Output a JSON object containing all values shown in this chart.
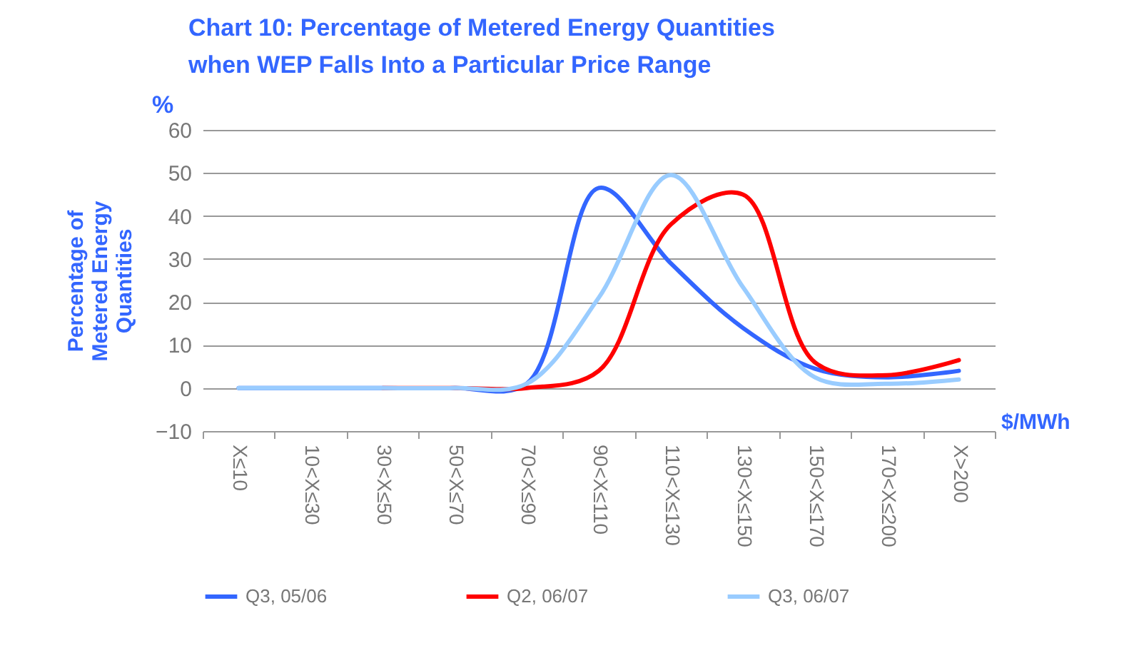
{
  "chart_data": {
    "type": "line",
    "title": "Chart 10: Percentage of Metered Energy Quantities when WEP Falls Into a Particular Price Range",
    "ylabel": "Percentage of Metered Energy Quantities",
    "xlabel": "$/MWh",
    "annotations": [
      "%"
    ],
    "categories": [
      "X≤10",
      "10<X≤30",
      "30<X≤50",
      "50<X≤70",
      "70<X≤90",
      "90<X≤110",
      "110<X≤130",
      "130<X≤150",
      "150<X≤170",
      "170<X≤200",
      "X>200"
    ],
    "series": [
      {
        "name": "Q3, 05/06",
        "color": "#3366ff",
        "values": [
          0,
          0,
          0,
          0,
          1,
          46.5,
          29,
          14,
          4.5,
          2.5,
          4
        ]
      },
      {
        "name": "Q2, 06/07",
        "color": "#ff0000",
        "values": [
          null,
          null,
          0,
          0,
          0,
          4,
          38,
          45,
          6,
          3,
          6.5
        ]
      },
      {
        "name": "Q3, 06/07",
        "color": "#99ccff",
        "values": [
          0,
          0,
          0,
          0,
          1,
          21,
          49.5,
          23.5,
          2.5,
          1,
          2
        ]
      }
    ],
    "ylim": [
      -10,
      60
    ],
    "yticks": [
      -10,
      0,
      10,
      20,
      30,
      40,
      50,
      60
    ],
    "grid": "y",
    "legend": "bottom",
    "line_style": "solid",
    "marker": "none"
  }
}
